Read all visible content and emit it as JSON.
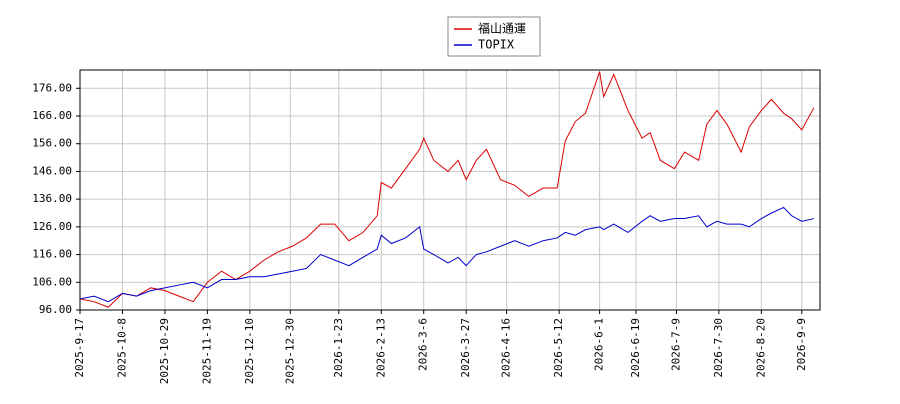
{
  "chart_data": {
    "type": "line",
    "x": [
      "2025-9-17",
      "2025-9-24",
      "2025-10-1",
      "2025-10-8",
      "2025-10-15",
      "2025-10-22",
      "2025-10-29",
      "2025-11-5",
      "2025-11-12",
      "2025-11-19",
      "2025-11-26",
      "2025-12-3",
      "2025-12-10",
      "2025-12-17",
      "2025-12-24",
      "2025-12-31",
      "2026-1-7",
      "2026-1-14",
      "2026-1-21",
      "2026-1-28",
      "2026-2-4",
      "2026-2-11",
      "2026-2-13",
      "2026-2-18",
      "2026-2-25",
      "2026-3-4",
      "2026-3-6",
      "2026-3-11",
      "2026-3-18",
      "2026-3-23",
      "2026-3-27",
      "2026-4-1",
      "2026-4-6",
      "2026-4-13",
      "2026-4-20",
      "2026-4-27",
      "2026-5-4",
      "2026-5-11",
      "2026-5-15",
      "2026-5-20",
      "2026-5-25",
      "2026-6-1",
      "2026-6-3",
      "2026-6-8",
      "2026-6-15",
      "2026-6-22",
      "2026-6-26",
      "2026-7-1",
      "2026-7-8",
      "2026-7-13",
      "2026-7-20",
      "2026-7-24",
      "2026-7-29",
      "2026-8-3",
      "2026-8-10",
      "2026-8-14",
      "2026-8-20",
      "2026-8-25",
      "2026-8-31",
      "2026-9-4",
      "2026-9-9",
      "2026-9-15"
    ],
    "series": [
      {
        "name": "福山通運",
        "color": "#dd0000",
        "values": [
          100,
          99,
          97,
          102,
          101,
          104,
          103,
          101,
          99,
          106,
          110,
          107,
          110,
          114,
          117,
          119,
          122,
          127,
          127,
          121,
          124,
          130,
          142,
          140,
          147,
          154,
          158,
          150,
          146,
          150,
          143,
          150,
          154,
          143,
          141,
          137,
          140,
          140,
          157,
          164,
          167,
          182,
          173,
          181,
          168,
          158,
          160,
          150,
          147,
          153,
          150,
          163,
          168,
          163,
          153,
          162,
          168,
          172,
          167,
          165,
          161,
          169
        ]
      },
      {
        "name": "TOPIX",
        "color": "#0000cc",
        "values": [
          100,
          101,
          99,
          102,
          101,
          103,
          104,
          105,
          106,
          104,
          107,
          107,
          108,
          108,
          109,
          110,
          111,
          116,
          114,
          112,
          115,
          118,
          123,
          120,
          122,
          126,
          118,
          116,
          113,
          115,
          112,
          116,
          117,
          119,
          121,
          119,
          121,
          122,
          124,
          123,
          125,
          126,
          125,
          127,
          124,
          128,
          130,
          128,
          129,
          129,
          130,
          126,
          128,
          127,
          127,
          126,
          129,
          131,
          133,
          130,
          128,
          129
        ]
      }
    ],
    "xlim": [
      "2025-9-17",
      "2026-9-18"
    ],
    "xticks": [
      "2025-9-17",
      "2025-10-8",
      "2025-10-29",
      "2025-11-19",
      "2025-12-10",
      "2025-12-30",
      "2026-1-23",
      "2026-2-13",
      "2026-3-6",
      "2026-3-27",
      "2026-4-16",
      "2026-5-12",
      "2026-6-1",
      "2026-6-19",
      "2026-7-9",
      "2026-7-30",
      "2026-8-20",
      "2026-9-9"
    ],
    "ylim": [
      96,
      182.6
    ],
    "yticks": [
      {
        "value": 96,
        "label": "96.00"
      },
      {
        "value": 106,
        "label": "106.00"
      },
      {
        "value": 116,
        "label": "116.00"
      },
      {
        "value": 126,
        "label": "126.00"
      },
      {
        "value": 136,
        "label": "136.00"
      },
      {
        "value": 146,
        "label": "146.00"
      },
      {
        "value": 156,
        "label": "156.00"
      },
      {
        "value": 166,
        "label": "166.00"
      },
      {
        "value": 176,
        "label": "176.00"
      }
    ],
    "grid": true,
    "legend": "top"
  }
}
